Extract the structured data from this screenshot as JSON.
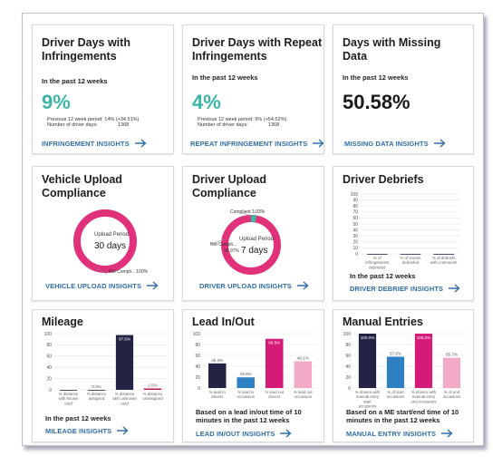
{
  "cards": {
    "infringements": {
      "title": "Driver Days with Infringements",
      "period": "In the past 12 weeks",
      "value": "9%",
      "previous": "Previous 12 week period: 14% (+34.51%)",
      "driver_days": "Number of driver days:",
      "driver_days_value": "1368",
      "link": "INFRINGEMENT INSIGHTS"
    },
    "repeat": {
      "title": "Driver Days with Repeat Infringements",
      "period": "In the past 12 weeks",
      "value": "4%",
      "previous": "Previous 12 week period: 9% (+54.52%)",
      "driver_days": "Number of driver days:",
      "driver_days_value": "1368",
      "link": "REPEAT INFRINGEMENT INSIGHTS"
    },
    "missing": {
      "title": "Days with Missing Data",
      "period": "In the past 12 weeks",
      "value": "50.58%",
      "link": "MISSING DATA INSIGHTS"
    },
    "vehicle_upload": {
      "title": "Vehicle Upload Compliance",
      "donut_label": "Upload Period",
      "donut_value": "30 days",
      "legend": "Not Compli... 100%",
      "link": "VEHICLE UPLOAD INSIGHTS"
    },
    "driver_upload": {
      "title": "Driver Upload Compliance",
      "donut_label": "Upload Period",
      "donut_value": "7 days",
      "compliant_label": "Compliant 3.03%",
      "not_label": "Not Compli...",
      "not_value": "96.97%",
      "link": "DRIVER UPLOAD INSIGHTS"
    },
    "debriefs": {
      "title": "Driver Debriefs",
      "period": "In the past 12 weeks",
      "link": "DRIVER DEBRIEF INSIGHTS"
    },
    "mileage": {
      "title": "Mileage",
      "period": "In the past 12 weeks",
      "link": "MILEAGE INSIGHTS"
    },
    "leadinout": {
      "title": "Lead In/Out",
      "note": "Based on a lead in/out time of 10 minutes in the past 12 weeks",
      "link": "LEAD IN/OUT INSIGHTS"
    },
    "manual": {
      "title": "Manual Entries",
      "note": "Based on a ME start/end time of 10 minutes in the past 12 weeks",
      "link": "MANUAL ENTRY INSIGHTS"
    }
  },
  "chart_data": [
    {
      "type": "bar",
      "name": "debriefs",
      "categories": [
        "% of infringements debriefed",
        "% of events debriefed",
        "% of debriefs with comments"
      ],
      "values": [
        0,
        0,
        0
      ],
      "ylim": [
        0,
        100
      ],
      "yticks": [
        "100",
        "90",
        "80",
        "70",
        "60",
        "50",
        "40",
        "30",
        "20",
        "10",
        "0"
      ]
    },
    {
      "type": "bar",
      "name": "mileage",
      "categories": [
        "% distance with known card",
        "% distance assigned",
        "% distance with unknown card",
        "% distance unassigned"
      ],
      "values": [
        0,
        0,
        97.5,
        2.5
      ],
      "labels": [
        "",
        "0.0%",
        "97.5%",
        "2.5%"
      ],
      "colors": [
        "#232344",
        "#232344",
        "#232344",
        "#c0185e"
      ],
      "ylim": [
        0,
        100
      ],
      "yticks": [
        "100",
        "80",
        "60",
        "40",
        "20",
        "0"
      ]
    },
    {
      "type": "bar",
      "name": "leadinout",
      "categories": [
        "% lead in drivers",
        "% lead in occasions",
        "% lead out drivers",
        "% lead out occasions"
      ],
      "values": [
        45.3,
        19.6,
        90.5,
        49.1
      ],
      "labels": [
        "45.3%",
        "19.6%",
        "90.5%",
        "49.1%"
      ],
      "colors": [
        "#232344",
        "#2f7fc2",
        "#d51a78",
        "#f2aac8"
      ],
      "ylim": [
        0,
        100
      ],
      "yticks": [
        "100",
        "80",
        "60",
        "40",
        "20",
        "0"
      ]
    },
    {
      "type": "bar",
      "name": "manual",
      "categories": [
        "% drivers with manual entry start occasions",
        "% of start occasions",
        "% drivers with manual entry end occasions",
        "% of end occasions"
      ],
      "values": [
        100,
        57.6,
        100,
        55.7
      ],
      "labels": [
        "100.0%",
        "57.6%",
        "100.0%",
        "55.7%"
      ],
      "colors": [
        "#232344",
        "#2f7fc2",
        "#d51a78",
        "#f2aac8"
      ],
      "ylim": [
        0,
        100
      ],
      "yticks": [
        "100",
        "80",
        "60",
        "40",
        "20",
        "0"
      ]
    }
  ],
  "colors": {
    "teal": "#3ab5a6",
    "link": "#2f6ea8",
    "donut_pink": "#e0317a",
    "compliant_teal": "#3ab5a6"
  },
  "icons": {
    "arrow": "arrow-right-icon"
  }
}
